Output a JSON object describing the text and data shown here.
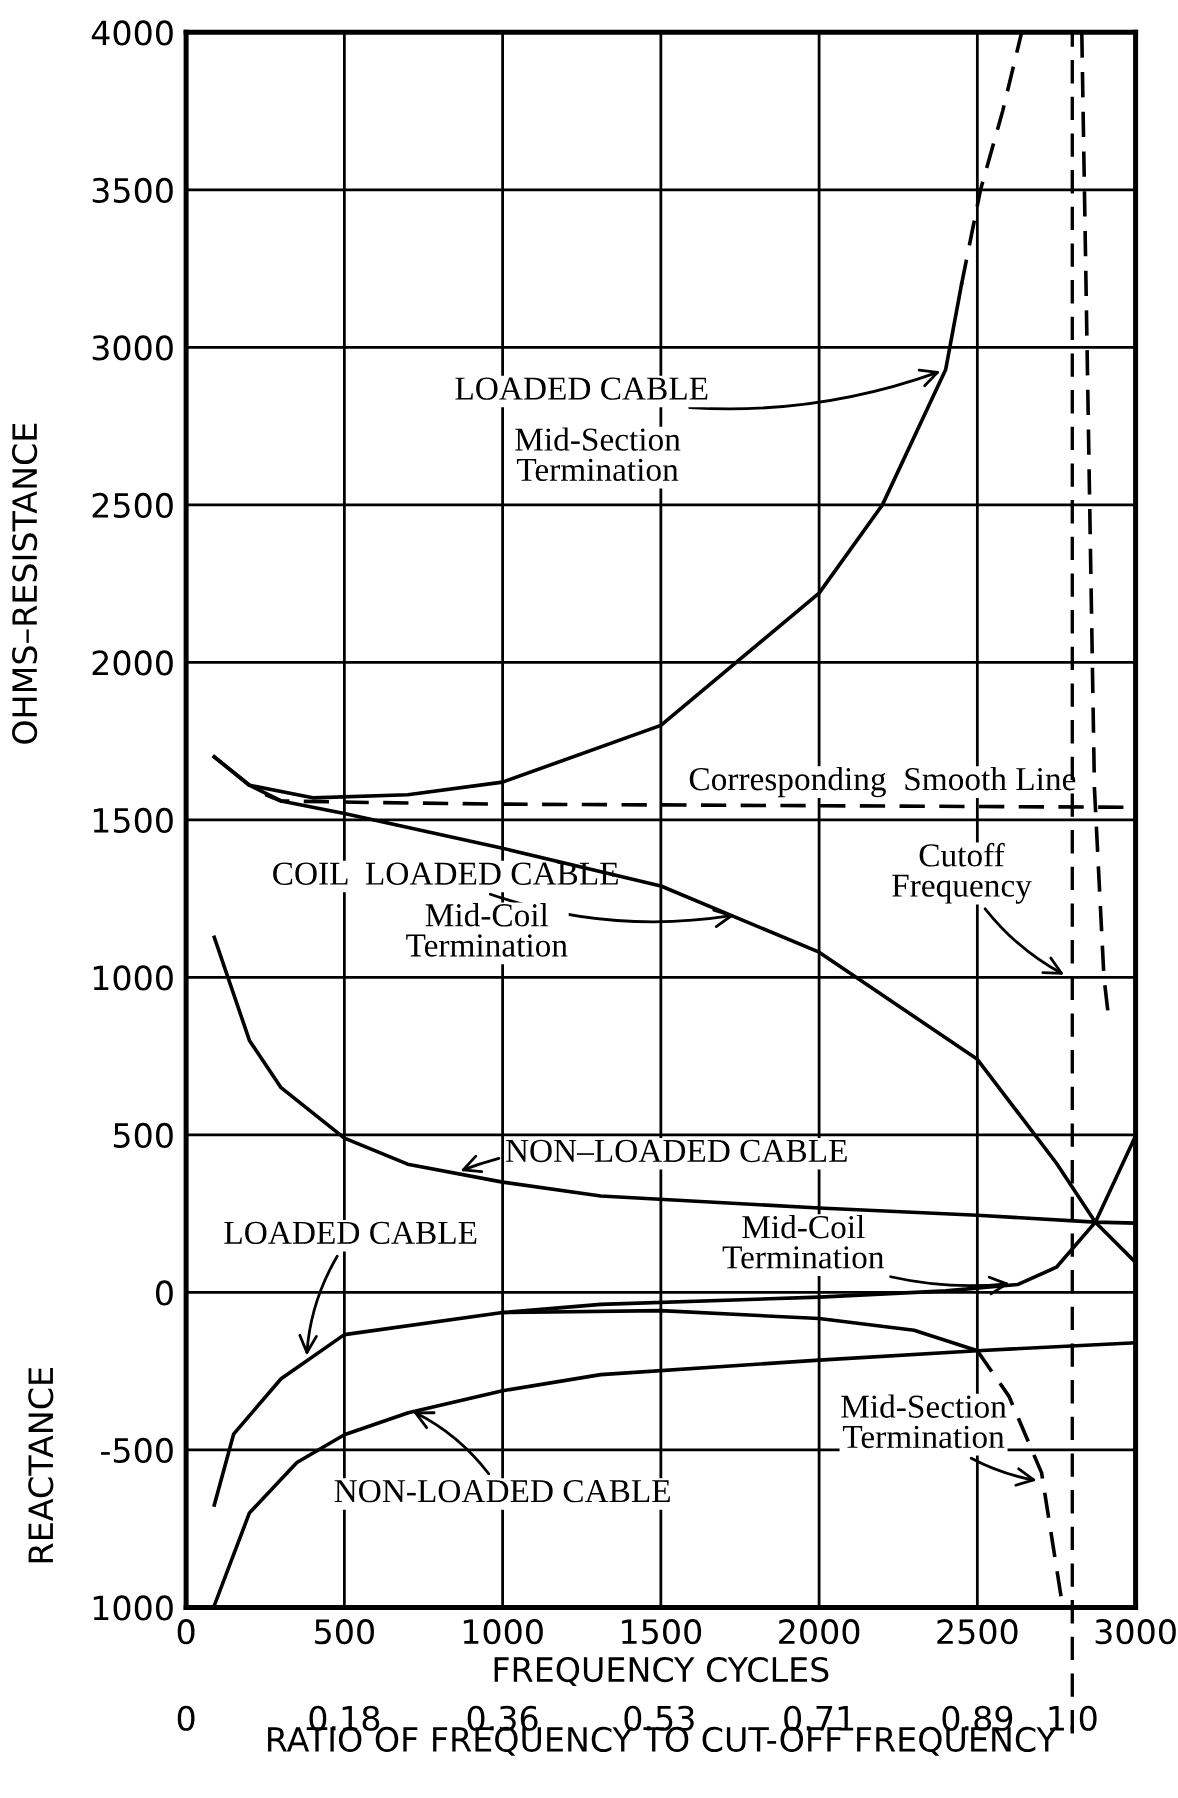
{
  "chart_data": {
    "type": "line",
    "xlabel": "FREQUENCY CYCLES",
    "x2label": "RATIO OF FREQUENCY TO CUT-OFF FREQUENCY",
    "ylabel": "OHMS–RESISTANCE",
    "xlim": [
      0,
      3000
    ],
    "xticks": [
      0,
      500,
      1000,
      1500,
      2000,
      2500,
      3000
    ],
    "x2lim": [
      0,
      1.0714
    ],
    "x2ticks": [
      0,
      {
        "value": 0.1786,
        "label": "0.18"
      },
      {
        "value": 0.3571,
        "label": "0.36"
      },
      {
        "value": 0.534,
        "label": "0.53"
      },
      {
        "value": 0.7143,
        "label": "0.71"
      },
      {
        "value": 0.8929,
        "label": "0.89"
      },
      {
        "value": 1.0,
        "label": "1.0"
      }
    ],
    "ylim": [
      -1000,
      4000
    ],
    "yticks": [
      {
        "value": -1000,
        "label": "1000"
      },
      -500,
      0,
      500,
      1000,
      1500,
      2000,
      2500,
      3000,
      3500,
      4000
    ],
    "grid": true,
    "marker": "none",
    "series": [
      {
        "color": "#000000",
        "line_style": "solid",
        "x": [
          89,
          200,
          400,
          700,
          1000,
          1500,
          2000,
          2200,
          2400,
          2450
        ],
        "values": [
          1700,
          1610,
          1570,
          1580,
          1620,
          1800,
          2220,
          2500,
          2930,
          3200
        ]
      },
      {
        "color": "#000000",
        "line_style": "dashed",
        "x": [
          2450,
          2510,
          2580,
          2640
        ],
        "values": [
          3200,
          3500,
          3750,
          4000
        ]
      },
      {
        "color": "#000000",
        "line_style": "dashed",
        "x": [
          250,
          300,
          600,
          1000,
          2000,
          3000
        ],
        "values": [
          1580,
          1560,
          1555,
          1550,
          1545,
          1540
        ]
      },
      {
        "color": "#000000",
        "line_style": "solid",
        "x": [
          89,
          200,
          300,
          500,
          1000,
          1500,
          2000,
          2500,
          2750,
          2873,
          3000
        ],
        "values": [
          1700,
          1610,
          1560,
          1520,
          1410,
          1290,
          1080,
          740,
          410,
          223,
          95
        ]
      },
      {
        "color": "#000000",
        "line_style": "solid",
        "x": [
          89,
          200,
          300,
          500,
          700,
          1000,
          1310,
          2000,
          2500,
          2873,
          3000
        ],
        "values": [
          1127,
          800,
          650,
          490,
          407,
          350,
          306,
          268,
          245,
          223,
          220
        ]
      },
      {
        "color": "#000000",
        "line_style": "solid",
        "x": [
          89,
          150,
          300,
          500,
          1000,
          1310,
          2000,
          2400,
          2627,
          2750,
          2873,
          3000
        ],
        "values": [
          -675,
          -450,
          -274,
          -134,
          -64,
          -38,
          -15,
          5,
          25,
          80,
          223,
          497
        ]
      },
      {
        "color": "#000000",
        "line_style": "solid",
        "x": [
          1000,
          1500,
          2000,
          2300,
          2500
        ],
        "values": [
          -64,
          -58,
          -83,
          -120,
          -185
        ]
      },
      {
        "color": "#000000",
        "line_style": "dashed",
        "x": [
          2500,
          2600,
          2703,
          2766
        ],
        "values": [
          -185,
          -330,
          -573,
          -975
        ]
      },
      {
        "color": "#000000",
        "line_style": "solid",
        "x": [
          89,
          200,
          350,
          500,
          702,
          1000,
          1310,
          2000,
          2500,
          3000
        ],
        "values": [
          -994,
          -700,
          -540,
          -452,
          -382,
          -312,
          -261,
          -215,
          -185,
          -160
        ]
      },
      {
        "color": "#000000",
        "line_style": "dashed",
        "x": [
          2830,
          2870,
          2900,
          2915
        ],
        "values": [
          4000,
          1600,
          1000,
          870
        ]
      }
    ],
    "ref_lines": [
      {
        "axis": "x",
        "value": 2800,
        "line_style": "dashed",
        "color": "#000000"
      }
    ],
    "annotations": [
      {
        "text": "LOADED CABLE",
        "x": 2400,
        "y": 2930
      },
      "Mid-Section\nTermination",
      {
        "text": "Corresponding  Smooth Line",
        "x": 2250,
        "y": 1550
      },
      {
        "text": "COIL  LOADED CABLE",
        "x": 1750,
        "y": 1200
      },
      "Mid-Coil\nTermination",
      {
        "text": "Cutoff\nFrequency",
        "x": 2790,
        "y": 1000
      },
      {
        "text": "NON–LOADED CABLE",
        "x": 850,
        "y": 379
      },
      {
        "text": "LOADED CABLE",
        "x": 380,
        "y": -218
      },
      {
        "text": "Mid-Coil\nTermination",
        "x": 2620,
        "y": 30
      },
      {
        "text": "Mid-Section\nTermination",
        "x": 2705,
        "y": -600
      },
      {
        "text": "NON-LOADED CABLE",
        "x": 700,
        "y": -370
      },
      "REACTANCE"
    ]
  }
}
